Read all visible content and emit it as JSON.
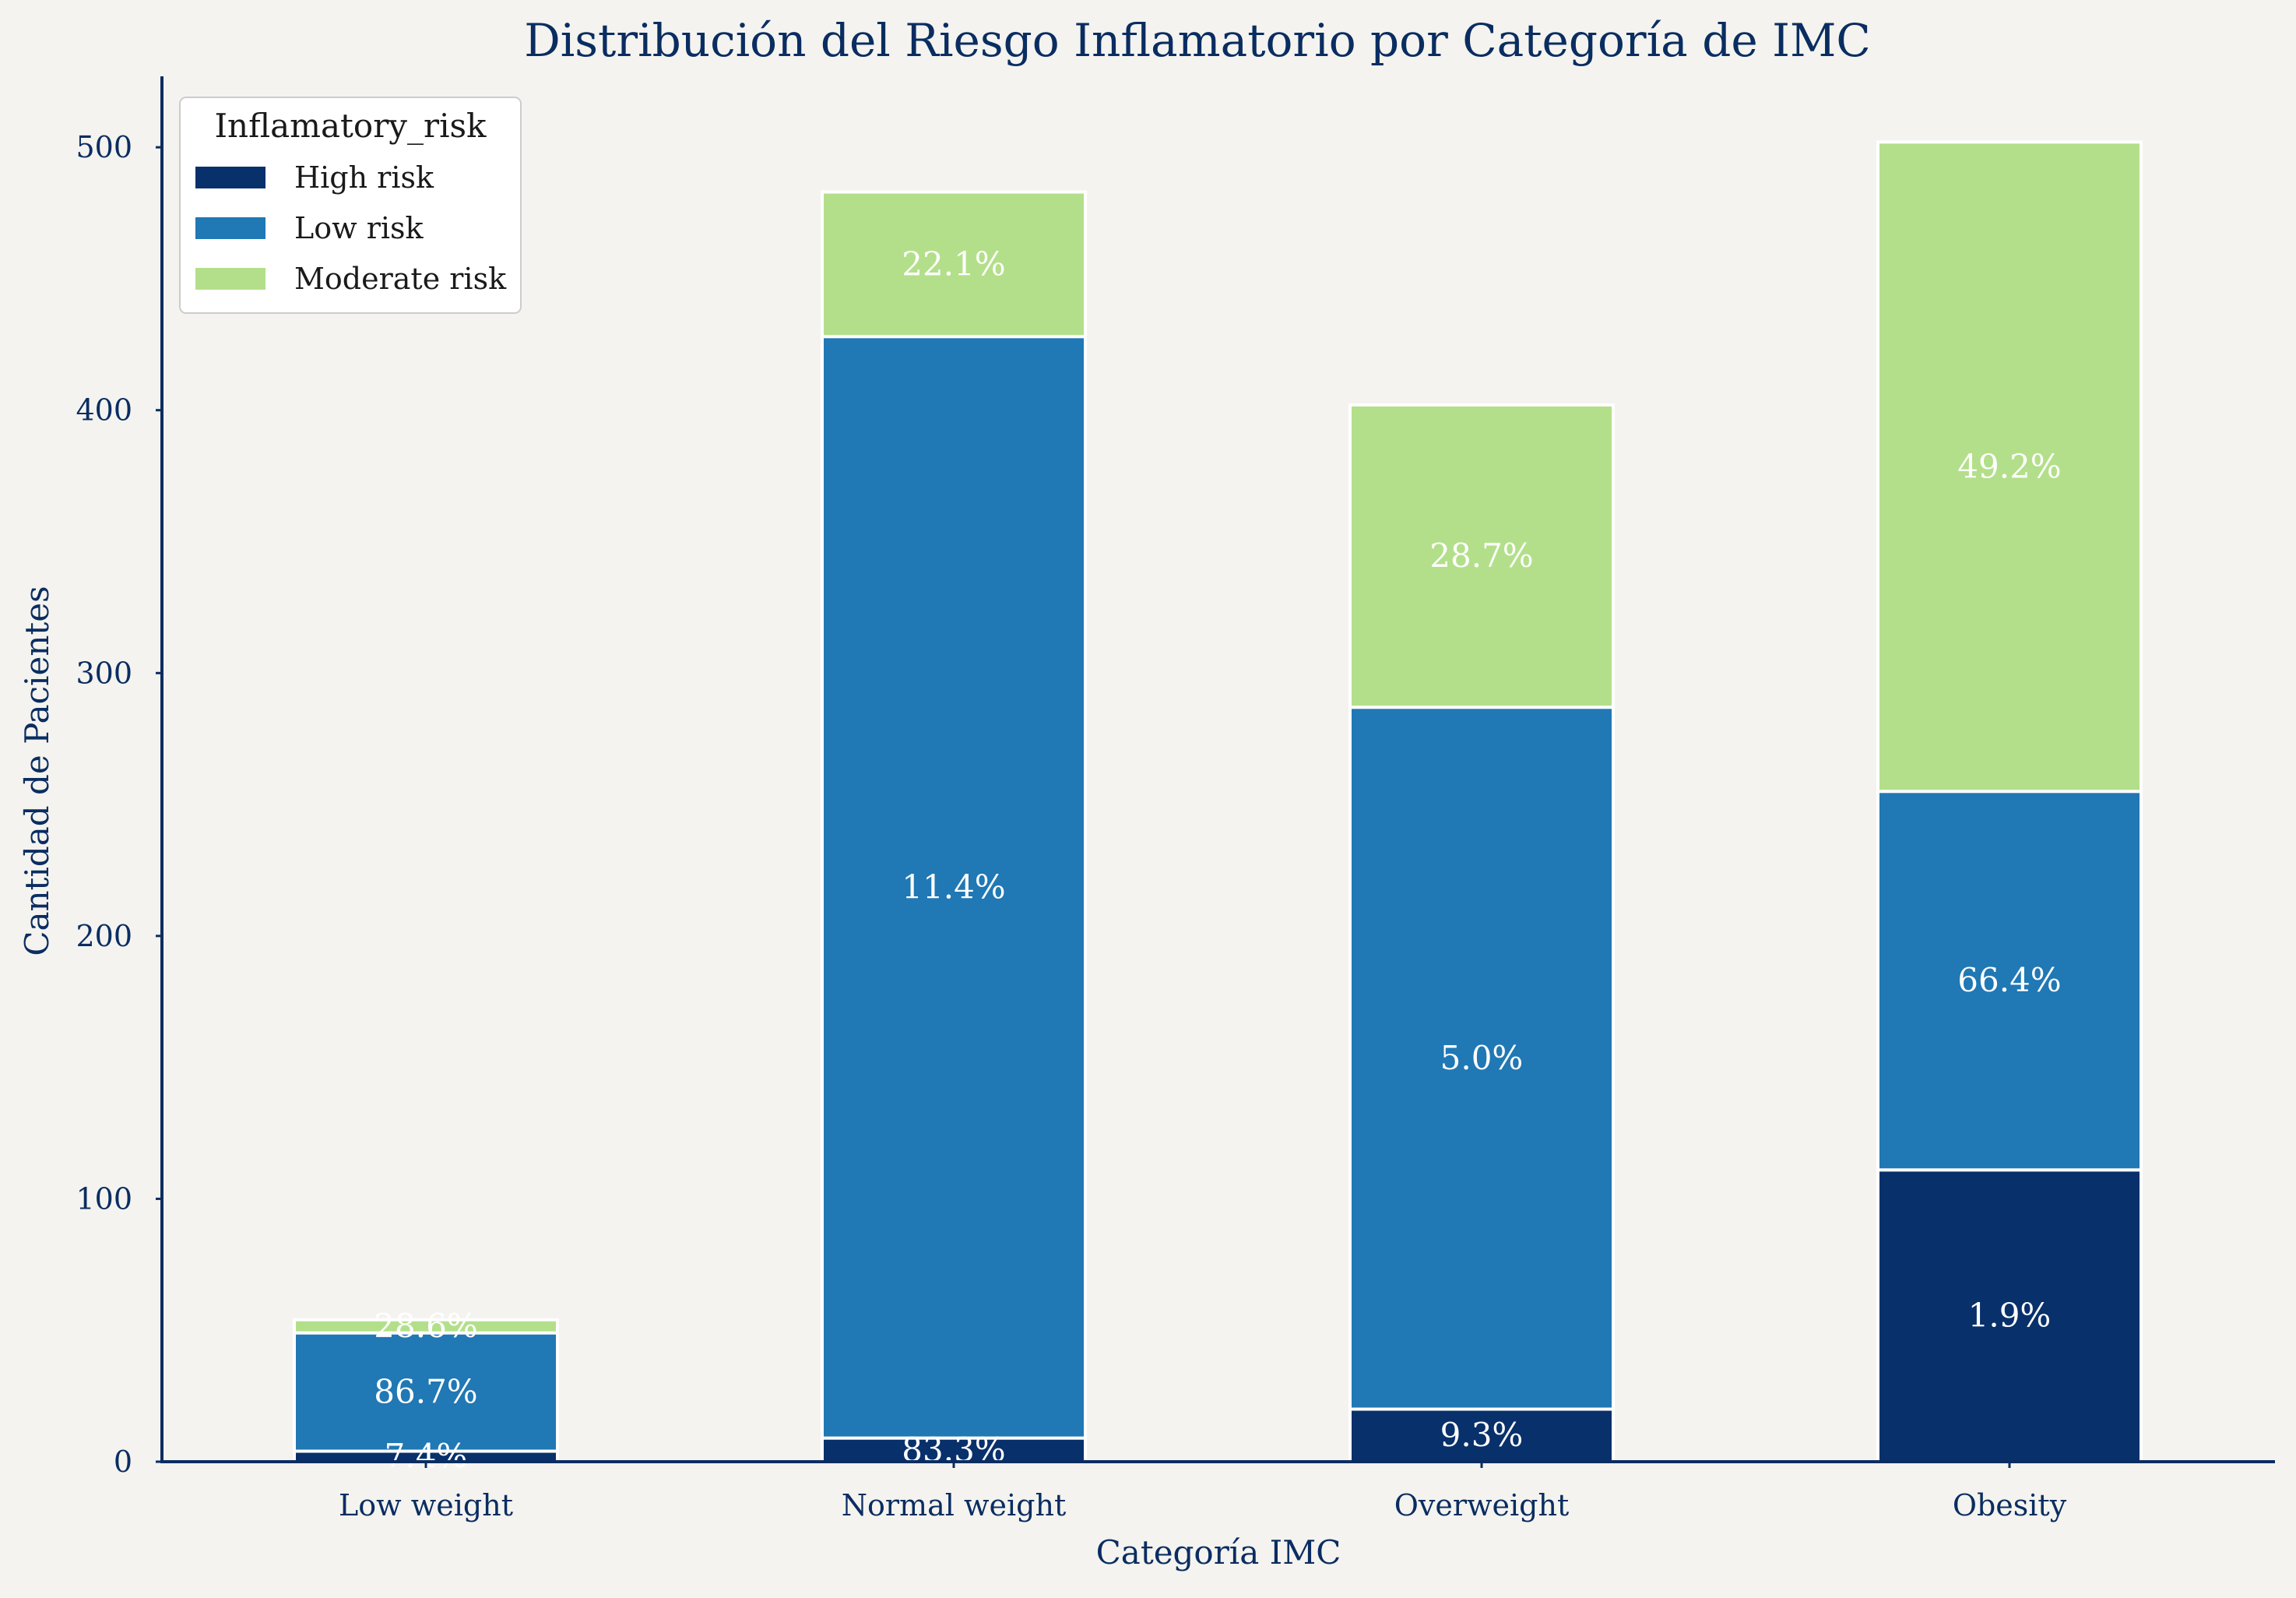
{
  "chart_data": {
    "type": "bar",
    "stacked": true,
    "title": "Distribución del Riesgo Inflamatorio por Categoría de IMC",
    "xlabel": "Categoría IMC",
    "ylabel": "Cantidad de Pacientes",
    "ylim": [
      0,
      527
    ],
    "yticks": [
      "0",
      "100",
      "200",
      "300",
      "400",
      "500"
    ],
    "categories": [
      "Low weight",
      "Normal weight",
      "Overweight",
      "Obesity"
    ],
    "legend": {
      "title": "Inflamatory_risk",
      "position": "top-left"
    },
    "grid": false,
    "series": [
      {
        "name": "High risk",
        "color": "#08306b",
        "values": [
          4,
          9,
          20,
          111
        ],
        "labels": [
          "7.4%",
          "83.3%",
          "9.3%",
          "1.9%"
        ]
      },
      {
        "name": "Low risk",
        "color": "#2078b4",
        "values": [
          45,
          419,
          267,
          144
        ],
        "labels": [
          "86.7%",
          "11.4%",
          "5.0%",
          "66.4%"
        ]
      },
      {
        "name": "Moderate risk",
        "color": "#b3df8a",
        "values": [
          5,
          55,
          115,
          247
        ],
        "labels": [
          "28.6%",
          "22.1%",
          "28.7%",
          "49.2%"
        ]
      }
    ]
  }
}
